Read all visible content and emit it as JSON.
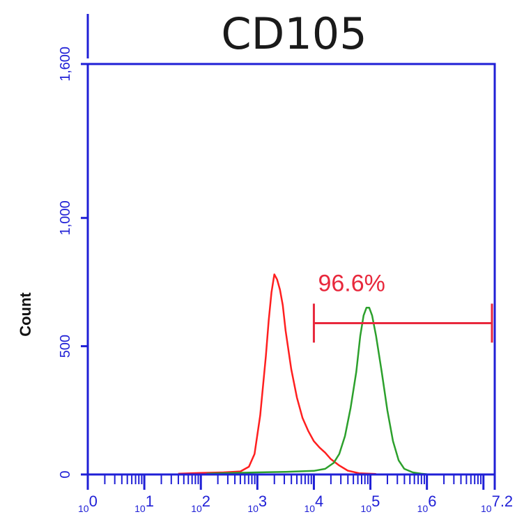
{
  "chart_data": {
    "type": "line",
    "title": "CD105",
    "ylabel": "Count",
    "xlabel": "",
    "xscale": "log",
    "xlim_exp": [
      0,
      7.2
    ],
    "ylim": [
      0,
      1600
    ],
    "yticks": [
      {
        "value": 0,
        "label": "0"
      },
      {
        "value": 500,
        "label": "500"
      },
      {
        "value": 1000,
        "label": "1,000"
      },
      {
        "value": 1600,
        "label": "1,600"
      }
    ],
    "xticks": [
      {
        "exp": 0,
        "base": "10",
        "exp_label": "0"
      },
      {
        "exp": 1,
        "base": "10",
        "exp_label": "1"
      },
      {
        "exp": 2,
        "base": "10",
        "exp_label": "2"
      },
      {
        "exp": 3,
        "base": "10",
        "exp_label": "3"
      },
      {
        "exp": 4,
        "base": "10",
        "exp_label": "4"
      },
      {
        "exp": 5,
        "base": "10",
        "exp_label": "5"
      },
      {
        "exp": 6,
        "base": "10",
        "exp_label": "6"
      },
      {
        "exp": 7.2,
        "base": "10",
        "exp_label": "7.2"
      }
    ],
    "series": [
      {
        "color": "#ff1f1f",
        "points": [
          [
            1.6,
            3
          ],
          [
            2.0,
            6
          ],
          [
            2.4,
            8
          ],
          [
            2.7,
            12
          ],
          [
            2.85,
            30
          ],
          [
            2.95,
            80
          ],
          [
            3.05,
            230
          ],
          [
            3.15,
            460
          ],
          [
            3.2,
            600
          ],
          [
            3.25,
            710
          ],
          [
            3.3,
            780
          ],
          [
            3.35,
            760
          ],
          [
            3.4,
            720
          ],
          [
            3.45,
            660
          ],
          [
            3.5,
            560
          ],
          [
            3.6,
            410
          ],
          [
            3.7,
            300
          ],
          [
            3.8,
            220
          ],
          [
            3.9,
            170
          ],
          [
            4.0,
            130
          ],
          [
            4.1,
            105
          ],
          [
            4.2,
            85
          ],
          [
            4.3,
            60
          ],
          [
            4.45,
            35
          ],
          [
            4.6,
            15
          ],
          [
            4.8,
            5
          ],
          [
            5.1,
            2
          ]
        ]
      },
      {
        "color": "#2ca02c",
        "points": [
          [
            2.1,
            3
          ],
          [
            2.6,
            6
          ],
          [
            3.0,
            8
          ],
          [
            3.5,
            10
          ],
          [
            4.0,
            14
          ],
          [
            4.2,
            22
          ],
          [
            4.35,
            45
          ],
          [
            4.45,
            80
          ],
          [
            4.55,
            150
          ],
          [
            4.65,
            260
          ],
          [
            4.75,
            400
          ],
          [
            4.82,
            540
          ],
          [
            4.88,
            620
          ],
          [
            4.93,
            650
          ],
          [
            4.98,
            650
          ],
          [
            5.03,
            620
          ],
          [
            5.1,
            540
          ],
          [
            5.2,
            400
          ],
          [
            5.3,
            250
          ],
          [
            5.4,
            130
          ],
          [
            5.5,
            55
          ],
          [
            5.6,
            22
          ],
          [
            5.75,
            8
          ],
          [
            5.9,
            3
          ],
          [
            6.0,
            1
          ]
        ]
      }
    ],
    "annotations": [
      {
        "type": "gate",
        "label": "96.6%",
        "x_from_exp": 4.0,
        "x_to_exp": 7.2,
        "y": 590,
        "color": "#e8283c"
      }
    ],
    "grid": false,
    "legend": "none"
  }
}
